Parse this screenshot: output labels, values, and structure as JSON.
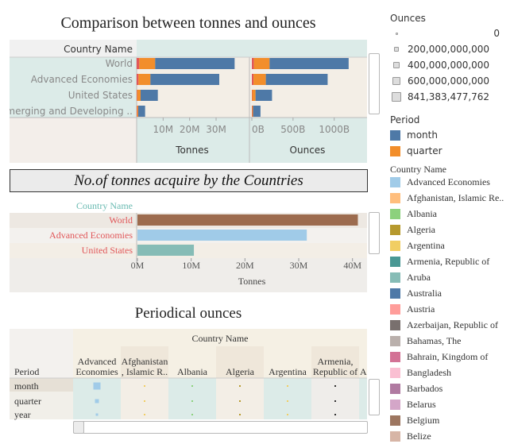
{
  "title1": "Comparison between tonnes and ounces",
  "banner": "No.of tonnes acquire by the Countries",
  "title3": "Periodical ounces",
  "chart1": {
    "header_col": "Country Name",
    "rows": [
      "World",
      "Advanced Economies",
      "United States",
      "Emerging and Developing .."
    ],
    "tonnes": {
      "label": "Tonnes",
      "ticks": [
        "10M",
        "20M",
        "30M"
      ],
      "tick_values": [
        10000000,
        20000000,
        30000000
      ],
      "xlim": [
        0,
        42000000
      ],
      "segments": [
        {
          "red": 1000000,
          "quarter": 6000000,
          "month": 30000000
        },
        {
          "red": 700000,
          "quarter": 4500000,
          "month": 26000000
        },
        {
          "red": 200000,
          "quarter": 1300000,
          "month": 6500000
        },
        {
          "red": 200000,
          "quarter": 400000,
          "month": 2600000
        }
      ]
    },
    "ounces": {
      "label": "Ounces",
      "ticks": [
        "0B",
        "500B",
        "1000B"
      ],
      "tick_values": [
        0,
        500000000000,
        1000000000000
      ],
      "xlim": [
        0,
        1350000000000
      ],
      "segments": [
        {
          "red": 25000000000,
          "quarter": 190000000000,
          "month": 960000000000
        },
        {
          "red": 20000000000,
          "quarter": 150000000000,
          "month": 750000000000
        },
        {
          "red": 5000000000,
          "quarter": 40000000000,
          "month": 200000000000
        },
        {
          "red": 5000000000,
          "quarter": 10000000000,
          "month": 90000000000
        }
      ]
    }
  },
  "chart_data": [
    {
      "type": "bar",
      "title": "Comparison between tonnes and ounces",
      "categories": [
        "World",
        "Advanced Economies",
        "United States",
        "Emerging and Developing .."
      ],
      "series": [
        {
          "name": "Tonnes",
          "values": [
            37000000,
            31200000,
            8000000,
            3200000
          ]
        },
        {
          "name": "Ounces",
          "values": [
            1175000000000,
            920000000000,
            245000000000,
            105000000000
          ]
        }
      ],
      "xlabel": "Tonnes / Ounces"
    },
    {
      "type": "bar",
      "title": "No.of tonnes acquire by the Countries",
      "categories": [
        "World",
        "Advanced Economies",
        "United States"
      ],
      "values": [
        41000000,
        31500000,
        10500000
      ],
      "xlabel": "Tonnes",
      "xlim": [
        0,
        43000000
      ],
      "ticks": [
        "0M",
        "10M",
        "20M",
        "30M",
        "40M"
      ]
    },
    {
      "type": "table",
      "title": "Periodical ounces",
      "columns": [
        "Advanced Economies",
        "Afghanistan, Islamic R..",
        "Albania",
        "Algeria",
        "Argentina",
        "Armenia, Republic of"
      ],
      "rows": [
        "month",
        "quarter",
        "year"
      ]
    }
  ],
  "chart2": {
    "header_col": "Country Name",
    "rows": [
      "World",
      "Advanced Economies",
      "United States"
    ],
    "values": [
      41000000,
      31500000,
      10500000
    ],
    "bar_colors": [
      "#9c6b4e",
      "#a0cbe8",
      "#86bcb6"
    ],
    "xlim": [
      0,
      43000000
    ],
    "ticks": [
      "0M",
      "10M",
      "20M",
      "30M",
      "40M"
    ],
    "tick_values": [
      0,
      10000000,
      20000000,
      30000000,
      40000000
    ],
    "xlabel": "Tonnes"
  },
  "chart3": {
    "header": "Country Name",
    "row_header": "Period",
    "columns": [
      "Advanced\nEconomies",
      "Afghanistan\n, Islamic R..",
      "Albania",
      "Algeria",
      "Argentina",
      "Armenia,\nRepublic of",
      "A"
    ],
    "rows": [
      "month",
      "quarter",
      "year"
    ],
    "marker_colors": [
      "#a0cbe8",
      "#f1ce63",
      "#8cd17d",
      "#b6992d",
      "#f1ce63",
      "#333333",
      "#cccccc"
    ]
  },
  "legend": {
    "ounces_title": "Ounces",
    "ounces_items": [
      "0",
      "200,000,000,000",
      "400,000,000,000",
      "600,000,000,000",
      "841,383,477,762"
    ],
    "period_title": "Period",
    "period_items": [
      {
        "label": "month",
        "color": "#4e79a7"
      },
      {
        "label": "quarter",
        "color": "#f28e2b"
      }
    ],
    "country_title": "Country Name",
    "country_items": [
      {
        "label": "Advanced Economies",
        "color": "#a0cbe8"
      },
      {
        "label": "Afghanistan, Islamic Re..",
        "color": "#ffbe7d"
      },
      {
        "label": "Albania",
        "color": "#8cd17d"
      },
      {
        "label": "Algeria",
        "color": "#b6992d"
      },
      {
        "label": "Argentina",
        "color": "#f1ce63"
      },
      {
        "label": "Armenia, Republic of",
        "color": "#499894"
      },
      {
        "label": "Aruba",
        "color": "#86bcb6"
      },
      {
        "label": "Australia",
        "color": "#4e79a7"
      },
      {
        "label": "Austria",
        "color": "#ff9d9a"
      },
      {
        "label": "Azerbaijan, Republic of",
        "color": "#79706e"
      },
      {
        "label": "Bahamas, The",
        "color": "#bab0ac"
      },
      {
        "label": "Bahrain, Kingdom of",
        "color": "#d37295"
      },
      {
        "label": "Bangladesh",
        "color": "#fabfd2"
      },
      {
        "label": "Barbados",
        "color": "#b07aa1"
      },
      {
        "label": "Belarus",
        "color": "#d4a6c8"
      },
      {
        "label": "Belgium",
        "color": "#9d7660"
      },
      {
        "label": "Belize",
        "color": "#d7b5a6"
      }
    ]
  },
  "colors": {
    "month": "#4e79a7",
    "quarter": "#f28e2b",
    "red": "#e15759",
    "teal_bg": "#dcebe8",
    "beige_bg": "#f3eee6"
  }
}
